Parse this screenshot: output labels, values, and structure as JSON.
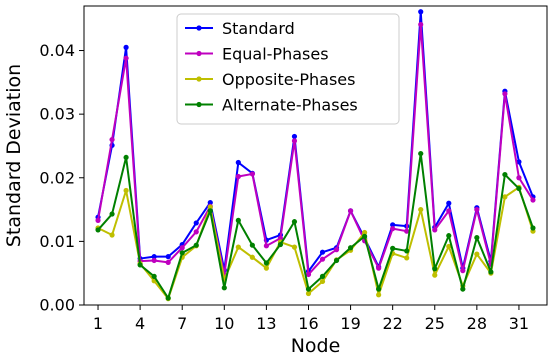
{
  "chart_data": {
    "type": "line",
    "title": "",
    "xlabel": "Node",
    "ylabel": "Standard Deviation",
    "xlim": [
      0,
      33
    ],
    "ylim": [
      0,
      0.047
    ],
    "x_ticks": [
      1,
      4,
      7,
      10,
      13,
      16,
      19,
      22,
      25,
      28,
      31
    ],
    "x_tick_labels": [
      "1",
      "4",
      "7",
      "10",
      "13",
      "16",
      "19",
      "22",
      "25",
      "28",
      "31"
    ],
    "y_ticks": [
      0.0,
      0.01,
      0.02,
      0.03,
      0.04
    ],
    "y_tick_labels": [
      "0.00",
      "0.01",
      "0.02",
      "0.03",
      "0.04"
    ],
    "grid": false,
    "legend_position": "top-center",
    "x": [
      1,
      2,
      3,
      4,
      5,
      6,
      7,
      8,
      9,
      10,
      11,
      12,
      13,
      14,
      15,
      16,
      17,
      18,
      19,
      20,
      21,
      22,
      23,
      24,
      25,
      26,
      27,
      28,
      29,
      30,
      31,
      32
    ],
    "series": [
      {
        "name": "Standard",
        "color": "#0000ff",
        "values": [
          0.0138,
          0.0251,
          0.0405,
          0.0073,
          0.0076,
          0.0076,
          0.0095,
          0.0129,
          0.0161,
          0.0055,
          0.0224,
          0.0207,
          0.0102,
          0.011,
          0.0265,
          0.0053,
          0.0083,
          0.009,
          0.0148,
          0.0105,
          0.006,
          0.0126,
          0.0124,
          0.0461,
          0.0122,
          0.016,
          0.0058,
          0.0153,
          0.0069,
          0.0336,
          0.0225,
          0.017
        ]
      },
      {
        "name": "Equal-Phases",
        "color": "#bf00bf",
        "values": [
          0.0133,
          0.026,
          0.0388,
          0.0069,
          0.007,
          0.0067,
          0.009,
          0.0115,
          0.0155,
          0.0048,
          0.0202,
          0.0206,
          0.0093,
          0.0105,
          0.0258,
          0.0048,
          0.0072,
          0.0087,
          0.0148,
          0.0101,
          0.0058,
          0.012,
          0.0116,
          0.0441,
          0.0118,
          0.0148,
          0.0054,
          0.015,
          0.0064,
          0.0332,
          0.02,
          0.0165
        ]
      },
      {
        "name": "Opposite-Phases",
        "color": "#bfbf00",
        "values": [
          0.0121,
          0.011,
          0.018,
          0.0065,
          0.0038,
          0.001,
          0.0075,
          0.0093,
          0.0154,
          0.004,
          0.0091,
          0.0075,
          0.0058,
          0.0099,
          0.0091,
          0.0018,
          0.0037,
          0.0071,
          0.0086,
          0.0114,
          0.0016,
          0.0081,
          0.0074,
          0.015,
          0.0047,
          0.0092,
          0.003,
          0.008,
          0.005,
          0.017,
          0.0185,
          0.0116
        ]
      },
      {
        "name": "Alternate-Phases",
        "color": "#008000",
        "values": [
          0.0118,
          0.0143,
          0.0232,
          0.0063,
          0.0045,
          0.0011,
          0.0082,
          0.0094,
          0.0148,
          0.0027,
          0.0133,
          0.0094,
          0.0066,
          0.0095,
          0.0131,
          0.0025,
          0.0045,
          0.007,
          0.009,
          0.0108,
          0.0025,
          0.0089,
          0.0085,
          0.0238,
          0.0057,
          0.0109,
          0.0025,
          0.0106,
          0.0052,
          0.0205,
          0.0183,
          0.0121
        ]
      }
    ]
  }
}
